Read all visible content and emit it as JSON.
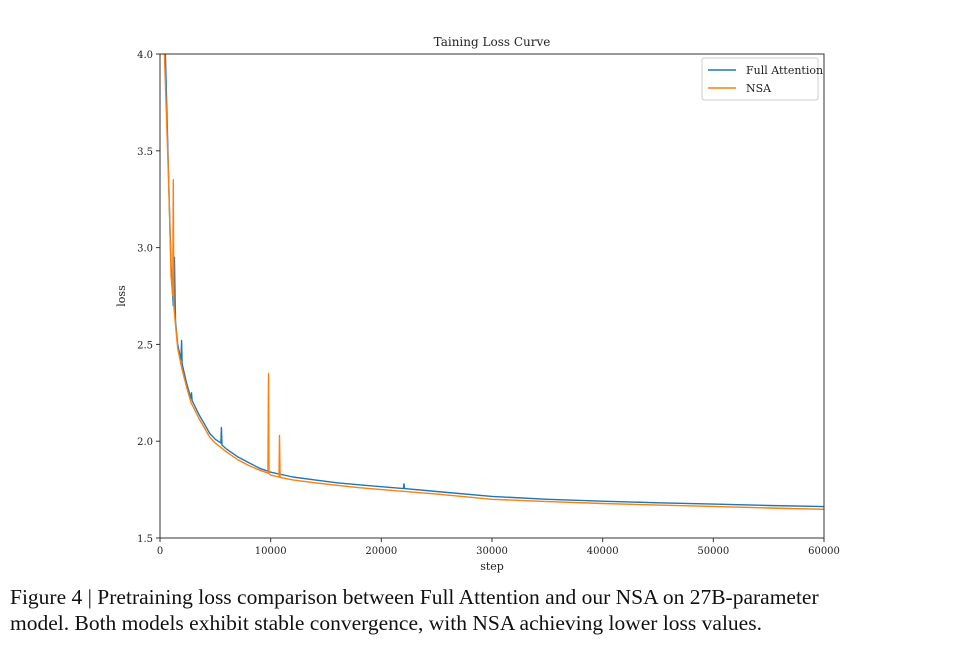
{
  "chart_data": {
    "type": "line",
    "title": "Taining Loss Curve",
    "xlabel": "step",
    "ylabel": "loss",
    "xlim": [
      0,
      60000
    ],
    "ylim": [
      1.5,
      4.0
    ],
    "xticks": [
      "0",
      "10000",
      "20000",
      "30000",
      "40000",
      "50000",
      "60000"
    ],
    "yticks": [
      "1.5",
      "2.0",
      "2.5",
      "3.0",
      "3.5",
      "4.0"
    ],
    "grid": false,
    "legend": "top-right",
    "series": [
      {
        "name": "Full Attention",
        "color": "#1f77b4",
        "x": [
          400,
          800,
          1000,
          1200,
          1300,
          1400,
          1600,
          1900,
          1950,
          2000,
          2400,
          2800,
          2850,
          2900,
          3500,
          4000,
          4500,
          5000,
          5500,
          5550,
          5600,
          6000,
          7000,
          8000,
          9000,
          10000,
          12000,
          14000,
          16000,
          18000,
          20000,
          22000,
          22050,
          22100,
          25000,
          30000,
          35000,
          40000,
          45000,
          50000,
          55000,
          60000
        ],
        "y": [
          4.2,
          3.3,
          2.9,
          2.7,
          2.95,
          2.62,
          2.5,
          2.42,
          2.52,
          2.4,
          2.3,
          2.22,
          2.25,
          2.21,
          2.14,
          2.09,
          2.04,
          2.01,
          1.99,
          2.07,
          1.98,
          1.96,
          1.92,
          1.89,
          1.86,
          1.84,
          1.815,
          1.8,
          1.785,
          1.775,
          1.765,
          1.755,
          1.78,
          1.755,
          1.74,
          1.715,
          1.7,
          1.69,
          1.682,
          1.675,
          1.668,
          1.662
        ]
      },
      {
        "name": "NSA",
        "color": "#ff7f0e",
        "x": [
          400,
          800,
          1000,
          1150,
          1200,
          1250,
          1400,
          1600,
          2000,
          2400,
          2800,
          3500,
          4000,
          4500,
          5000,
          6000,
          7000,
          8000,
          9000,
          9750,
          9800,
          9850,
          10000,
          10750,
          10800,
          10850,
          12000,
          14000,
          16000,
          18000,
          20000,
          25000,
          30000,
          35000,
          40000,
          45000,
          50000,
          55000,
          60000
        ],
        "y": [
          4.0,
          3.3,
          2.85,
          2.75,
          3.35,
          2.7,
          2.6,
          2.48,
          2.37,
          2.28,
          2.2,
          2.12,
          2.07,
          2.02,
          1.99,
          1.945,
          1.905,
          1.875,
          1.85,
          1.835,
          2.35,
          1.833,
          1.825,
          1.815,
          2.03,
          1.813,
          1.8,
          1.785,
          1.772,
          1.76,
          1.75,
          1.727,
          1.7,
          1.688,
          1.678,
          1.67,
          1.663,
          1.655,
          1.648
        ]
      }
    ]
  },
  "caption": {
    "line1": "Figure 4 | Pretraining loss comparison between Full Attention and our NSA on 27B-parameter",
    "line2": "model. Both models exhibit stable convergence, with NSA achieving lower loss values."
  }
}
